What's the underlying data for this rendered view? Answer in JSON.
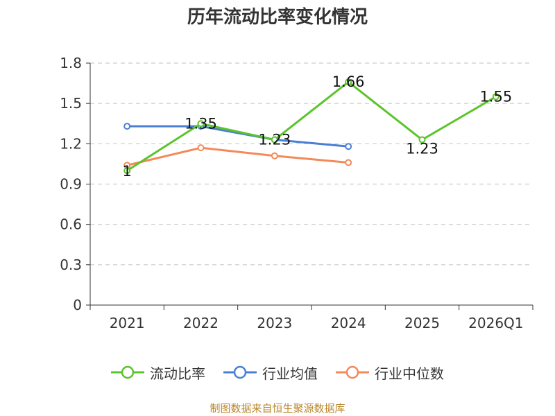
{
  "chart_data": {
    "type": "line",
    "title": "历年流动比率变化情况",
    "categories": [
      "2021",
      "2022",
      "2023",
      "2024",
      "2025",
      "2026Q1"
    ],
    "ylim": [
      0,
      1.8
    ],
    "yticks": [
      "0",
      "0.3",
      "0.6",
      "0.9",
      "1.2",
      "1.5",
      "1.8"
    ],
    "grid": true,
    "legend_position": "bottom",
    "series": [
      {
        "name": "流动比率",
        "color": "#5bc42a",
        "values": [
          1.0,
          1.35,
          1.23,
          1.66,
          1.23,
          1.55
        ],
        "labels": [
          "1",
          "1.35",
          "1.23",
          "1.66",
          "1.23",
          "1.55"
        ]
      },
      {
        "name": "行业均值",
        "color": "#4a7fd6",
        "values": [
          1.33,
          1.33,
          1.23,
          1.18,
          null,
          null
        ]
      },
      {
        "name": "行业中位数",
        "color": "#f4895a",
        "values": [
          1.04,
          1.17,
          1.11,
          1.06,
          null,
          null
        ]
      }
    ]
  },
  "source": "制图数据来自恒生聚源数据库"
}
